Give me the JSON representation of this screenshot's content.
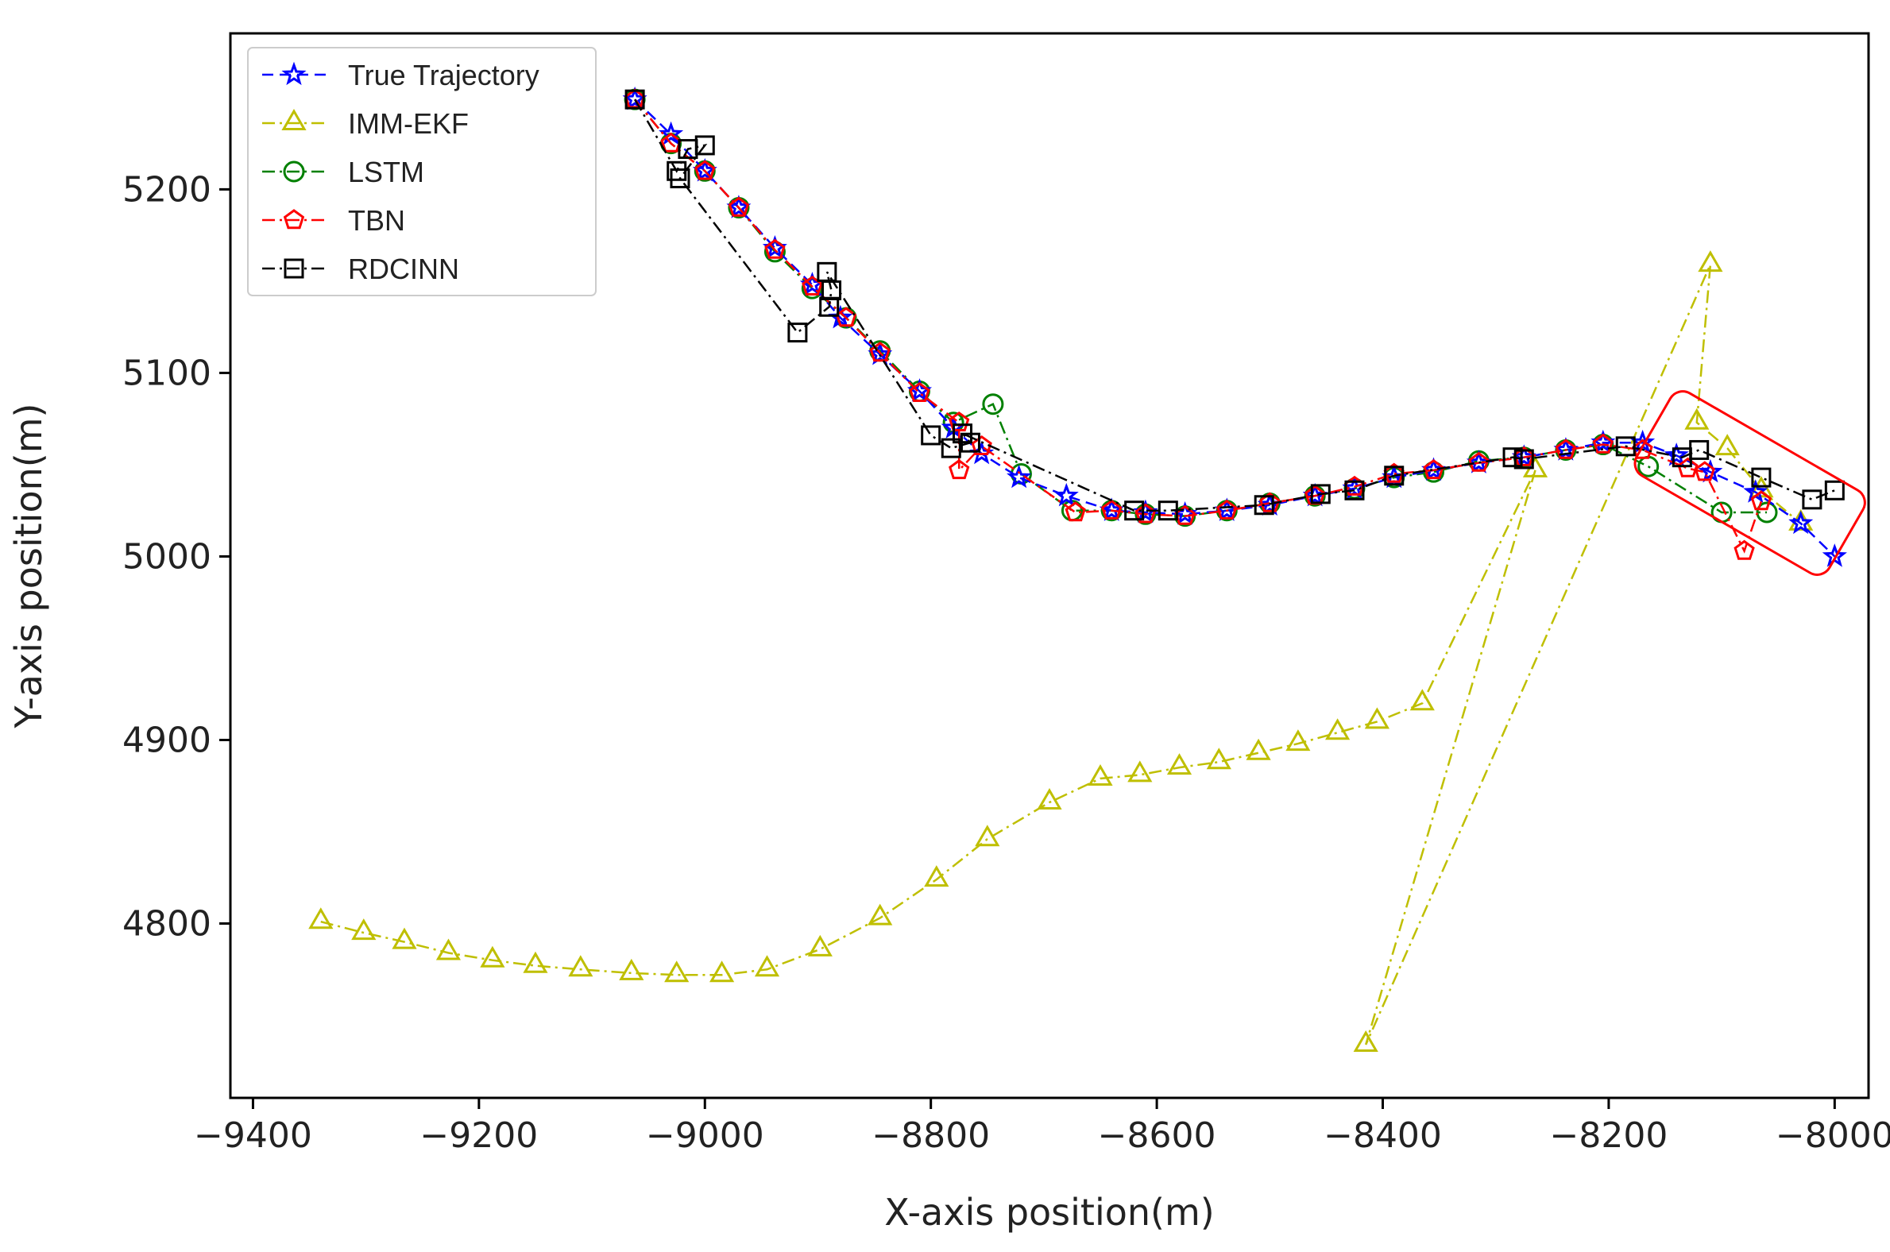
{
  "chart_data": {
    "type": "line",
    "title": "",
    "xlabel": "X-axis position(m)",
    "ylabel": "Y-axis position(m)",
    "xlim": [
      -9420,
      -7970
    ],
    "ylim": [
      4705,
      5285
    ],
    "xticks": [
      -9400,
      -9200,
      -9000,
      -8800,
      -8600,
      -8400,
      -8200,
      -8000
    ],
    "xtick_labels": [
      "−9400",
      "−9200",
      "−9000",
      "−8800",
      "−8600",
      "−8400",
      "−8200",
      "−8000"
    ],
    "yticks": [
      4800,
      4900,
      5000,
      5100,
      5200
    ],
    "ytick_labels": [
      "4800",
      "4900",
      "5000",
      "5100",
      "5200"
    ],
    "grid": false,
    "legend_position": "top-left",
    "annotation": {
      "type": "highlight-box",
      "color": "#ff0000",
      "x_range": [
        -8150,
        -8000
      ],
      "y_range": [
        5000,
        5080
      ]
    },
    "series": [
      {
        "name": "True Trajectory",
        "color": "#0000ff",
        "marker": "star",
        "dash": "dashed",
        "x": [
          -9062,
          -9030,
          -9000,
          -8970,
          -8938,
          -8905,
          -8880,
          -8845,
          -8810,
          -8780,
          -8755,
          -8722,
          -8680,
          -8640,
          -8610,
          -8575,
          -8538,
          -8500,
          -8460,
          -8425,
          -8390,
          -8355,
          -8315,
          -8275,
          -8238,
          -8205,
          -8170,
          -8140,
          -8110,
          -8070,
          -8030,
          -8000
        ],
        "y": [
          5249,
          5230,
          5210,
          5190,
          5168,
          5148,
          5130,
          5110,
          5090,
          5070,
          5056,
          5043,
          5033,
          5025,
          5024,
          5023,
          5025,
          5028,
          5033,
          5037,
          5043,
          5047,
          5051,
          5054,
          5058,
          5062,
          5062,
          5055,
          5046,
          5035,
          5018,
          5000
        ]
      },
      {
        "name": "IMM-EKF",
        "color": "#bfbf00",
        "marker": "triangle",
        "dash": "dashdot",
        "x": [
          -9340,
          -9302,
          -9266,
          -9227,
          -9188,
          -9150,
          -9110,
          -9065,
          -9025,
          -8985,
          -8945,
          -8898,
          -8845,
          -8795,
          -8750,
          -8695,
          -8650,
          -8615,
          -8580,
          -8545,
          -8510,
          -8475,
          -8440,
          -8405,
          -8365,
          -8265,
          -8415,
          -8110,
          -8122,
          -8095,
          -8065,
          -8030
        ],
        "y": [
          4801,
          4795,
          4790,
          4784,
          4780,
          4777,
          4775,
          4773,
          4772,
          4772,
          4775,
          4786,
          4803,
          4824,
          4846,
          4866,
          4879,
          4881,
          4885,
          4888,
          4893,
          4898,
          4904,
          4910,
          4920,
          5047,
          4734,
          5159,
          5073,
          5059,
          5036,
          5018
        ]
      },
      {
        "name": "LSTM",
        "color": "#008000",
        "marker": "circle",
        "dash": "dashdot",
        "x": [
          -9062,
          -9030,
          -9000,
          -8970,
          -8938,
          -8905,
          -8875,
          -8845,
          -8810,
          -8780,
          -8745,
          -8720,
          -8675,
          -8640,
          -8610,
          -8575,
          -8538,
          -8500,
          -8460,
          -8425,
          -8390,
          -8355,
          -8315,
          -8275,
          -8238,
          -8205,
          -8165,
          -8100,
          -8060
        ],
        "y": [
          5249,
          5225,
          5210,
          5190,
          5166,
          5146,
          5130,
          5112,
          5090,
          5073,
          5083,
          5045,
          5025,
          5025,
          5023,
          5022,
          5025,
          5029,
          5033,
          5037,
          5043,
          5046,
          5052,
          5054,
          5058,
          5061,
          5049,
          5024,
          5024
        ]
      },
      {
        "name": "TBN",
        "color": "#ff0000",
        "marker": "pentagon",
        "dash": "dashdot",
        "x": [
          -9062,
          -9030,
          -9000,
          -8970,
          -8938,
          -8905,
          -8875,
          -8845,
          -8810,
          -8775,
          -8775,
          -8755,
          -8672,
          -8640,
          -8610,
          -8575,
          -8538,
          -8500,
          -8460,
          -8425,
          -8390,
          -8355,
          -8315,
          -8275,
          -8238,
          -8205,
          -8170,
          -8130,
          -8115,
          -8080,
          -8065
        ],
        "y": [
          5249,
          5225,
          5210,
          5190,
          5167,
          5147,
          5130,
          5111,
          5089,
          5073,
          5047,
          5060,
          5024,
          5025,
          5023,
          5022,
          5025,
          5029,
          5033,
          5038,
          5045,
          5047,
          5051,
          5054,
          5058,
          5061,
          5058,
          5048,
          5046,
          5003,
          5030
        ]
      },
      {
        "name": "RDCINN",
        "color": "#000000",
        "marker": "square",
        "dash": "dashdot",
        "x": [
          -9062,
          -9025,
          -9015,
          -9000,
          -9022,
          -8918,
          -8890,
          -8888,
          -8892,
          -8800,
          -8782,
          -8765,
          -8772,
          -8620,
          -8590,
          -8505,
          -8455,
          -8425,
          -8390,
          -8285,
          -8275,
          -8185,
          -8135,
          -8120,
          -8065,
          -8020,
          -8000
        ],
        "y": [
          5249,
          5210,
          5222,
          5224,
          5206,
          5122,
          5136,
          5145,
          5155,
          5066,
          5059,
          5062,
          5067,
          5025,
          5025,
          5028,
          5034,
          5036,
          5044,
          5054,
          5053,
          5060,
          5054,
          5058,
          5043,
          5031,
          5036
        ]
      }
    ]
  },
  "legend": {
    "items": [
      {
        "label": "True Trajectory"
      },
      {
        "label": "IMM-EKF"
      },
      {
        "label": "LSTM"
      },
      {
        "label": "TBN"
      },
      {
        "label": "RDCINN"
      }
    ]
  }
}
